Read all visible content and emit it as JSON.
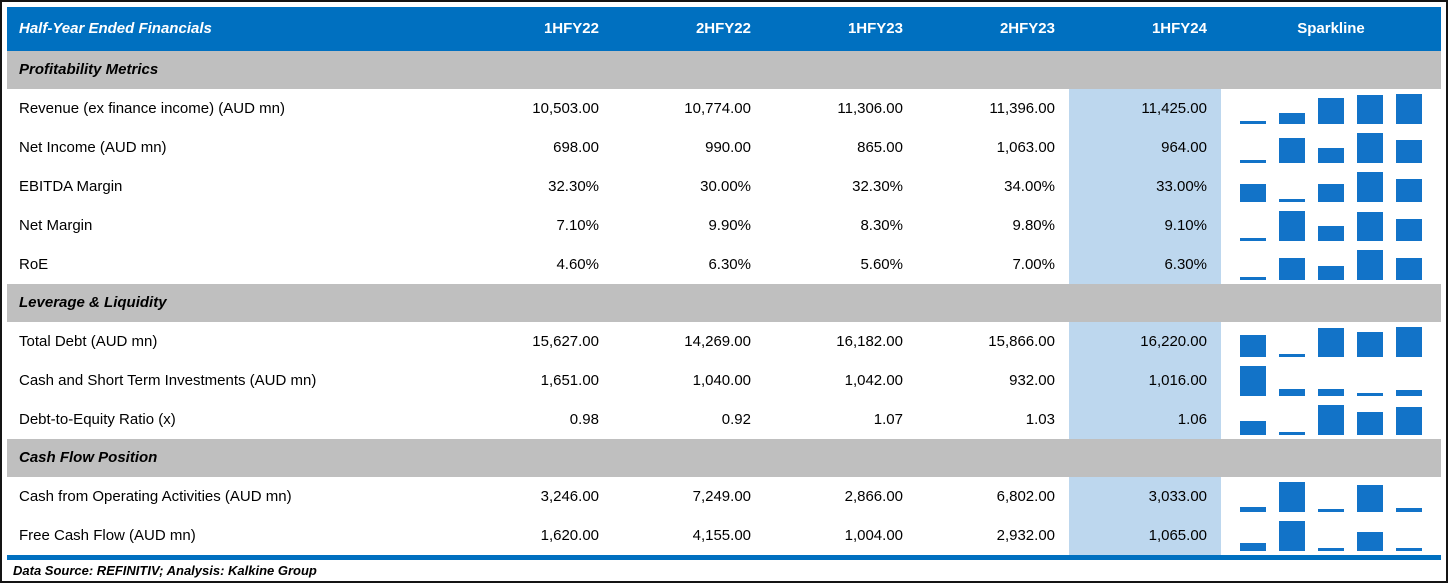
{
  "chart_data": {
    "type": "table",
    "title": "Half-Year Ended Financials",
    "columns": [
      "1HFY22",
      "2HFY22",
      "1HFY23",
      "2HFY23",
      "1HFY24"
    ],
    "sparkline_header": "Sparkline",
    "highlight_column": "1HFY24",
    "sparkline_type": "bar",
    "sections": [
      {
        "title": "Profitability Metrics",
        "rows": [
          {
            "label": "Revenue (ex finance income) (AUD mn)",
            "display": [
              "10,503.00",
              "10,774.00",
              "11,306.00",
              "11,396.00",
              "11,425.00"
            ],
            "values": [
              10503,
              10774,
              11306,
              11396,
              11425
            ]
          },
          {
            "label": "Net Income (AUD mn)",
            "display": [
              "698.00",
              "990.00",
              "865.00",
              "1,063.00",
              "964.00"
            ],
            "values": [
              698,
              990,
              865,
              1063,
              964
            ]
          },
          {
            "label": "EBITDA Margin",
            "display": [
              "32.30%",
              "30.00%",
              "32.30%",
              "34.00%",
              "33.00%"
            ],
            "values": [
              32.3,
              30.0,
              32.3,
              34.0,
              33.0
            ]
          },
          {
            "label": "Net Margin",
            "display": [
              "7.10%",
              "9.90%",
              "8.30%",
              "9.80%",
              "9.10%"
            ],
            "values": [
              7.1,
              9.9,
              8.3,
              9.8,
              9.1
            ]
          },
          {
            "label": "RoE",
            "display": [
              "4.60%",
              "6.30%",
              "5.60%",
              "7.00%",
              "6.30%"
            ],
            "values": [
              4.6,
              6.3,
              5.6,
              7.0,
              6.3
            ]
          }
        ]
      },
      {
        "title": "Leverage & Liquidity",
        "rows": [
          {
            "label": "Total Debt (AUD mn)",
            "display": [
              "15,627.00",
              "14,269.00",
              "16,182.00",
              "15,866.00",
              "16,220.00"
            ],
            "values": [
              15627,
              14269,
              16182,
              15866,
              16220
            ]
          },
          {
            "label": "Cash and Short Term Investments (AUD mn)",
            "display": [
              "1,651.00",
              "1,040.00",
              "1,042.00",
              "932.00",
              "1,016.00"
            ],
            "values": [
              1651,
              1040,
              1042,
              932,
              1016
            ]
          },
          {
            "label": "Debt-to-Equity Ratio (x)",
            "display": [
              "0.98",
              "0.92",
              "1.07",
              "1.03",
              "1.06"
            ],
            "values": [
              0.98,
              0.92,
              1.07,
              1.03,
              1.06
            ]
          }
        ]
      },
      {
        "title": "Cash Flow Position",
        "rows": [
          {
            "label": "Cash from Operating Activities (AUD mn)",
            "display": [
              "3,246.00",
              "7,249.00",
              "2,866.00",
              "6,802.00",
              "3,033.00"
            ],
            "values": [
              3246,
              7249,
              2866,
              6802,
              3033
            ]
          },
          {
            "label": "Free Cash Flow (AUD mn)",
            "display": [
              "1,620.00",
              "4,155.00",
              "1,004.00",
              "2,932.00",
              "1,065.00"
            ],
            "values": [
              1620,
              4155,
              1004,
              2932,
              1065
            ]
          }
        ]
      }
    ]
  },
  "footer": {
    "source_note": "Data Source: REFINITIV; Analysis: Kalkine Group"
  },
  "colors": {
    "header_bg": "#0070C0",
    "header_text": "#FFFFFF",
    "section_bg": "#BFBFBF",
    "highlight_bg": "#BDD7EE",
    "sparkline_bar": "#1273C8",
    "divider": "#0070C0",
    "border": "#141414",
    "text": "#000000"
  }
}
